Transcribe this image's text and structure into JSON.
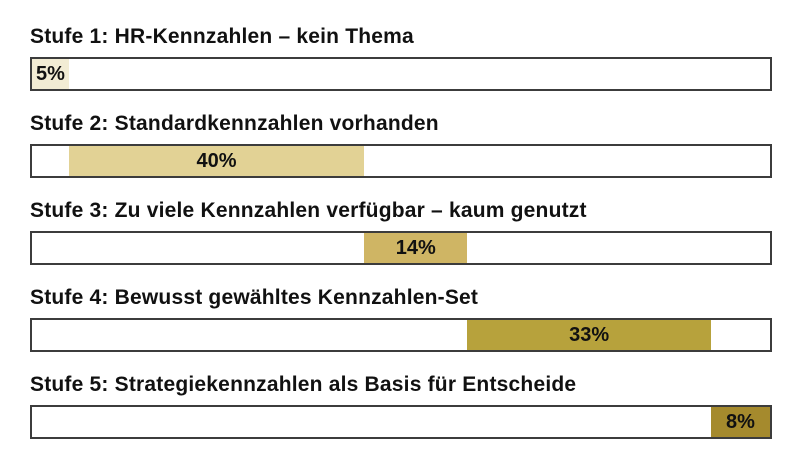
{
  "chart_data": {
    "type": "bar",
    "orientation": "horizontal",
    "variant": "sequential-stacked-progress",
    "title": "",
    "xlabel": "",
    "ylabel": "",
    "xlim": [
      0,
      100
    ],
    "unit": "%",
    "grid": false,
    "legend": false,
    "categories": [
      "Stufe 1: HR-Kennzahlen – kein Thema",
      "Stufe 2: Standardkennzahlen vorhanden",
      "Stufe 3: Zu viele Kennzahlen verfügbar – kaum genutzt",
      "Stufe 4: Bewusst gewähltes Kennzahlen-Set",
      "Stufe 5: Strategiekennzahlen als Basis für Entscheide"
    ],
    "values": [
      5,
      40,
      14,
      33,
      8
    ],
    "offsets": [
      0,
      5,
      45,
      59,
      92
    ],
    "rows": [
      {
        "label": "Stufe 1: HR-Kennzahlen – kein Thema",
        "value": 5,
        "offset": 0,
        "value_label": "5%",
        "color": "#f2ecd4"
      },
      {
        "label": "Stufe 2: Standardkennzahlen vorhanden",
        "value": 40,
        "offset": 5,
        "value_label": "40%",
        "color": "#e2d295"
      },
      {
        "label": "Stufe 3: Zu viele Kennzahlen verfügbar – kaum genutzt",
        "value": 14,
        "offset": 45,
        "value_label": "14%",
        "color": "#cfb564"
      },
      {
        "label": "Stufe 4: Bewusst gewähltes Kennzahlen-Set",
        "value": 33,
        "offset": 59,
        "value_label": "33%",
        "color": "#b7a23c"
      },
      {
        "label": "Stufe 5: Strategiekennzahlen als Basis für Entscheide",
        "value": 8,
        "offset": 92,
        "value_label": "8%",
        "color": "#a58a2d"
      }
    ],
    "colors": {
      "track_border": "#3c3c3c",
      "track_background": "#ffffff",
      "text": "#111111"
    }
  }
}
